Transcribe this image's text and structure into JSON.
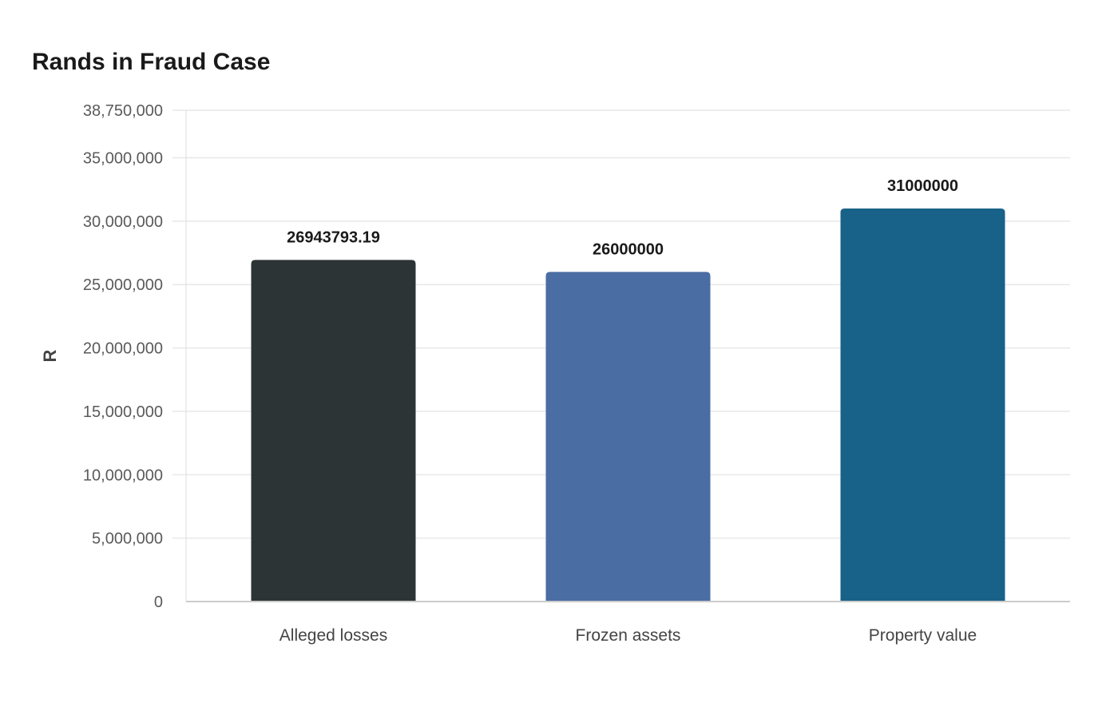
{
  "chart_data": {
    "type": "bar",
    "title": "Rands in Fraud Case",
    "xlabel": "",
    "ylabel": "R",
    "categories": [
      "Alleged losses",
      "Frozen assets",
      "Property value"
    ],
    "values": [
      26943793.19,
      26000000,
      31000000
    ],
    "data_labels": [
      "26943793.19",
      "26000000",
      "31000000"
    ],
    "colors": [
      "#2d3436",
      "#4a6da3",
      "#186188"
    ],
    "ylim": [
      0,
      38750000
    ],
    "yticks": [
      0,
      5000000,
      10000000,
      15000000,
      20000000,
      25000000,
      30000000,
      35000000,
      38750000
    ],
    "ytick_labels": [
      "0",
      "5,000,000",
      "10,000,000",
      "15,000,000",
      "20,000,000",
      "25,000,000",
      "30,000,000",
      "35,000,000",
      "38,750,000"
    ],
    "grid": true,
    "legend": "none"
  }
}
